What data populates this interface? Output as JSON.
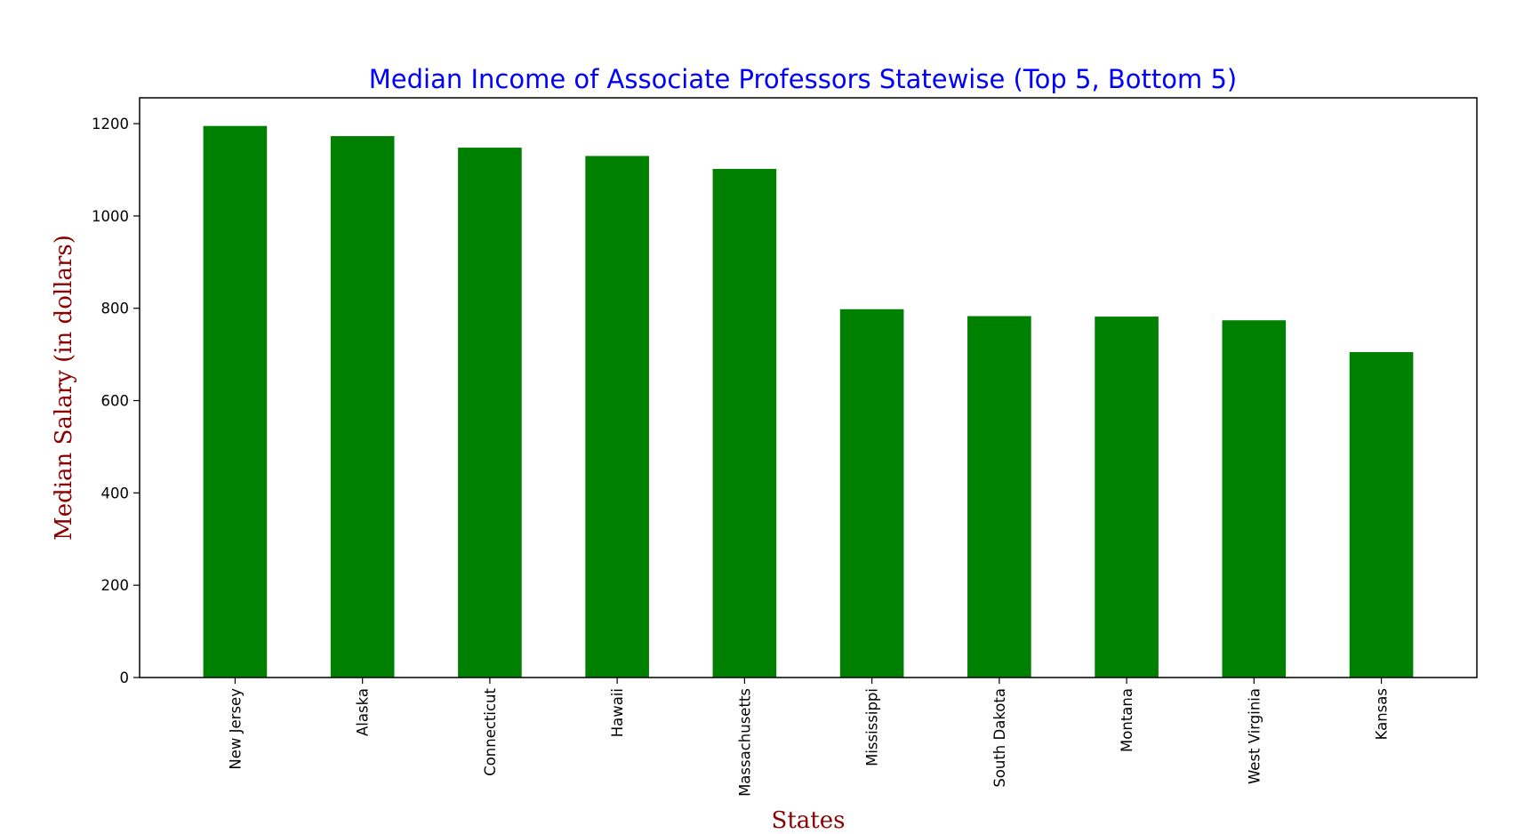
{
  "colors": {
    "title": "#0000ff",
    "axis_label": "#8b0000",
    "bar": "#008000",
    "axis": "#000000",
    "background": "#ffffff"
  },
  "chart_data": {
    "type": "bar",
    "title": "Median Income of Associate Professors Statewise (Top 5, Bottom 5)",
    "xlabel": "States",
    "ylabel": "Median Salary (in dollars)",
    "categories": [
      "New Jersey",
      "Alaska",
      "Connecticut",
      "Hawaii",
      "Massachusetts",
      "Mississippi",
      "South Dakota",
      "Montana",
      "West Virginia",
      "Kansas"
    ],
    "values": [
      1195,
      1173,
      1148,
      1130,
      1102,
      798,
      783,
      782,
      774,
      705
    ],
    "ylim": [
      0,
      1256
    ],
    "yticks": [
      0,
      200,
      400,
      600,
      800,
      1000,
      1200
    ],
    "xtick_rotation": "vertical",
    "grid": false,
    "legend": "none"
  }
}
